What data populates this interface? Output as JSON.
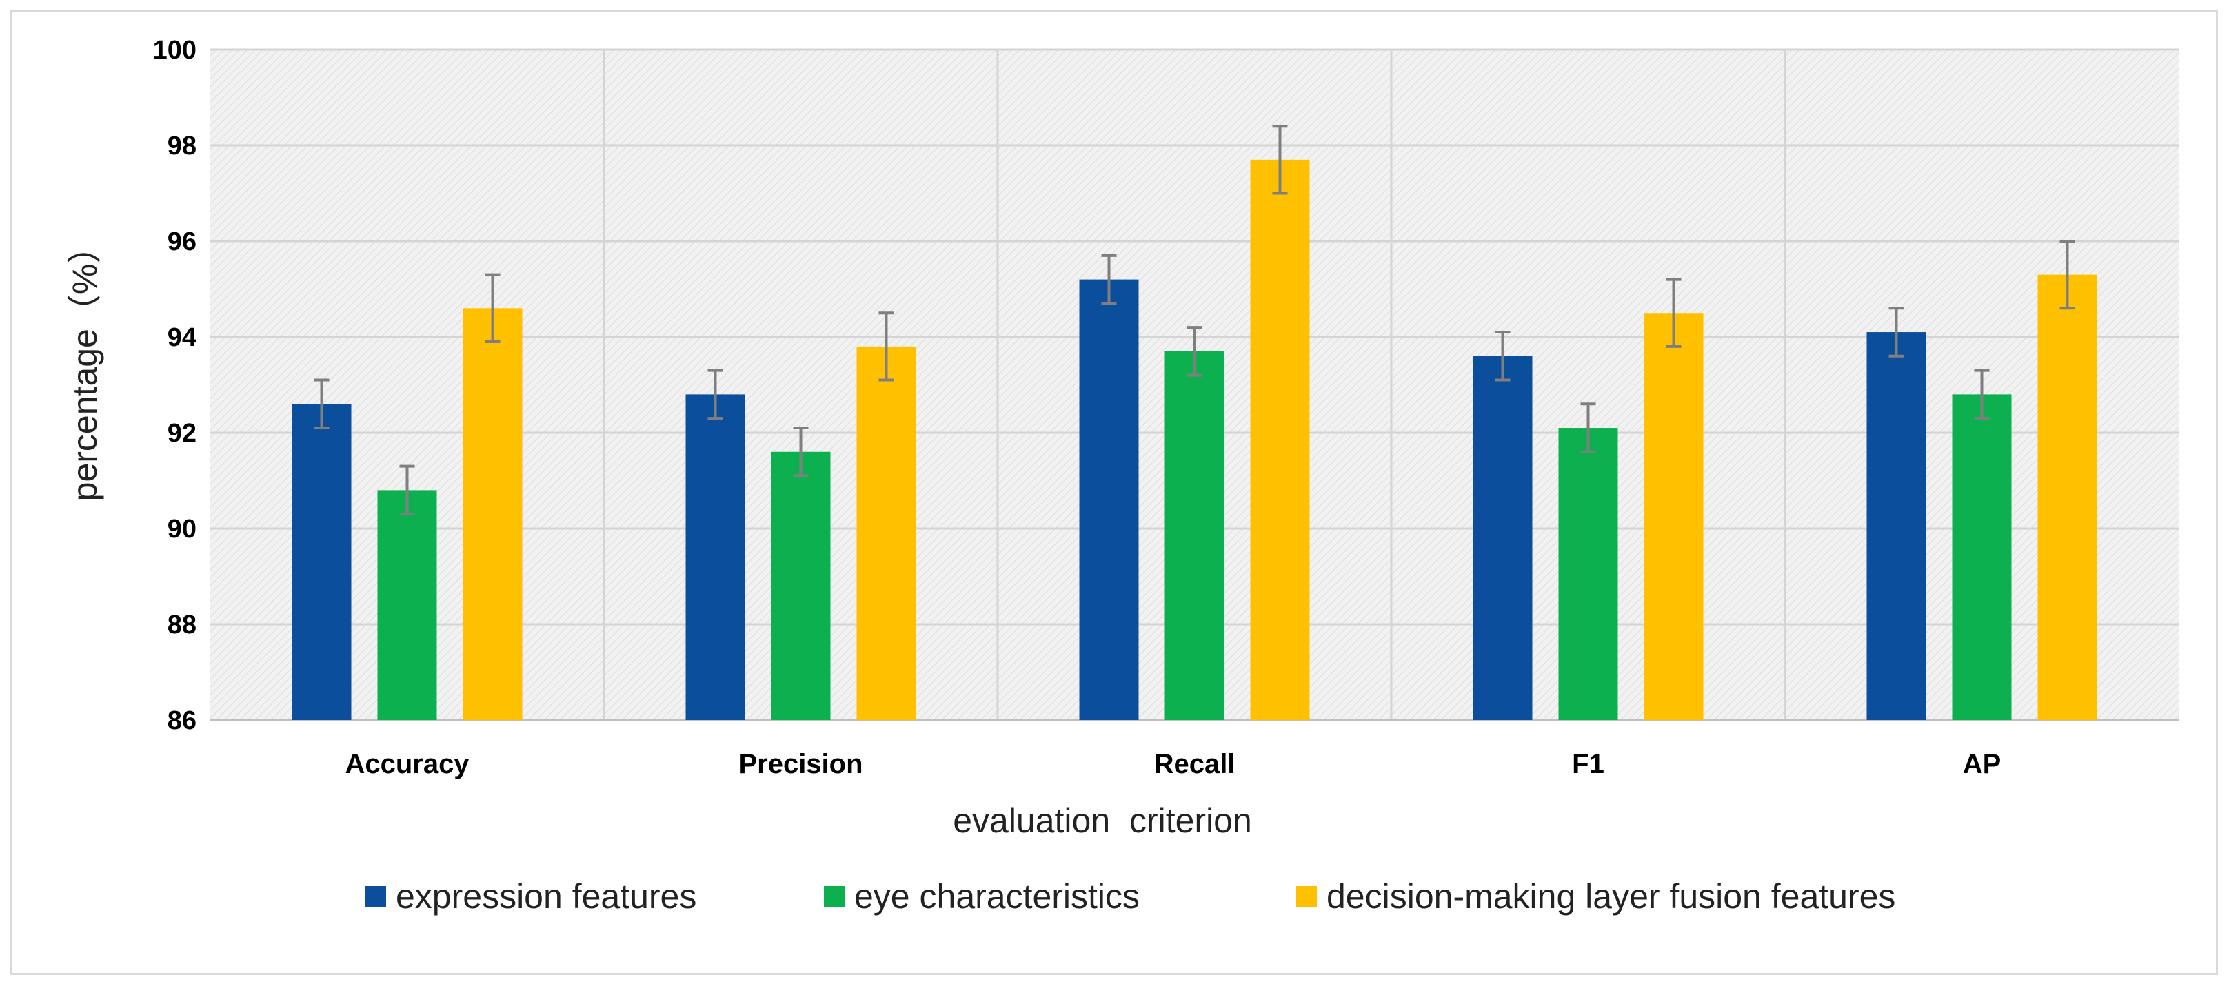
{
  "chart_data": {
    "type": "bar",
    "title": "",
    "xlabel": "evaluation  criterion",
    "ylabel": "percentage（%）",
    "ylim": [
      86,
      100
    ],
    "yticks": [
      86,
      88,
      90,
      92,
      94,
      96,
      98,
      100
    ],
    "categories": [
      "Accuracy",
      "Precision",
      "Recall",
      "F1",
      "AP"
    ],
    "series": [
      {
        "name": "expression features",
        "color": "#0b4f9c",
        "values": [
          92.6,
          92.8,
          95.2,
          93.6,
          94.1
        ],
        "errors": [
          0.5,
          0.5,
          0.5,
          0.5,
          0.5
        ]
      },
      {
        "name": "eye characteristics",
        "color": "#0cb04f",
        "values": [
          90.8,
          91.6,
          93.7,
          92.1,
          92.8
        ],
        "errors": [
          0.5,
          0.5,
          0.5,
          0.5,
          0.5
        ]
      },
      {
        "name": "decision-making layer fusion features",
        "color": "#ffc000",
        "values": [
          94.6,
          93.8,
          97.7,
          94.5,
          95.3
        ],
        "errors": [
          0.7,
          0.7,
          0.7,
          0.7,
          0.7
        ]
      }
    ],
    "grid": true,
    "legend_position": "bottom"
  }
}
